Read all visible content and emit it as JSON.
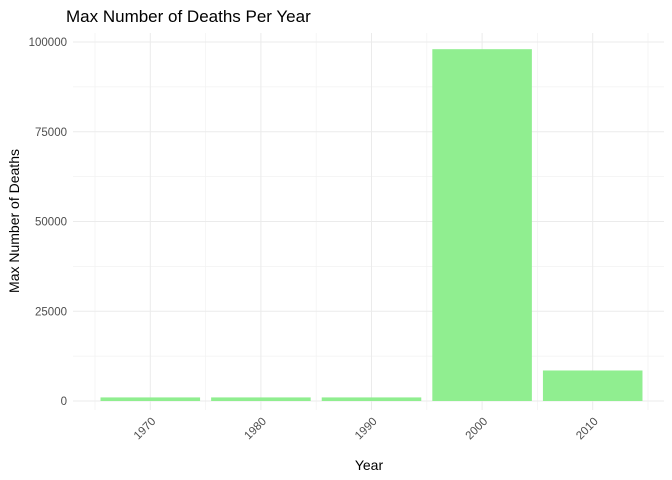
{
  "chart_data": {
    "type": "bar",
    "title": "Max Number of Deaths Per Year",
    "xlabel": "Year",
    "ylabel": "Max Number of Deaths",
    "categories": [
      "1970",
      "1980",
      "1990",
      "2000",
      "2010"
    ],
    "values": [
      1000,
      1000,
      1000,
      98000,
      8500
    ],
    "ylim": [
      0,
      100000
    ],
    "yticks": [
      0,
      25000,
      50000,
      75000,
      100000
    ],
    "ytick_labels": [
      "0",
      "25000",
      "50000",
      "75000",
      "100000"
    ],
    "grid": true,
    "legend": "none",
    "bar_color": "#90ee90"
  }
}
